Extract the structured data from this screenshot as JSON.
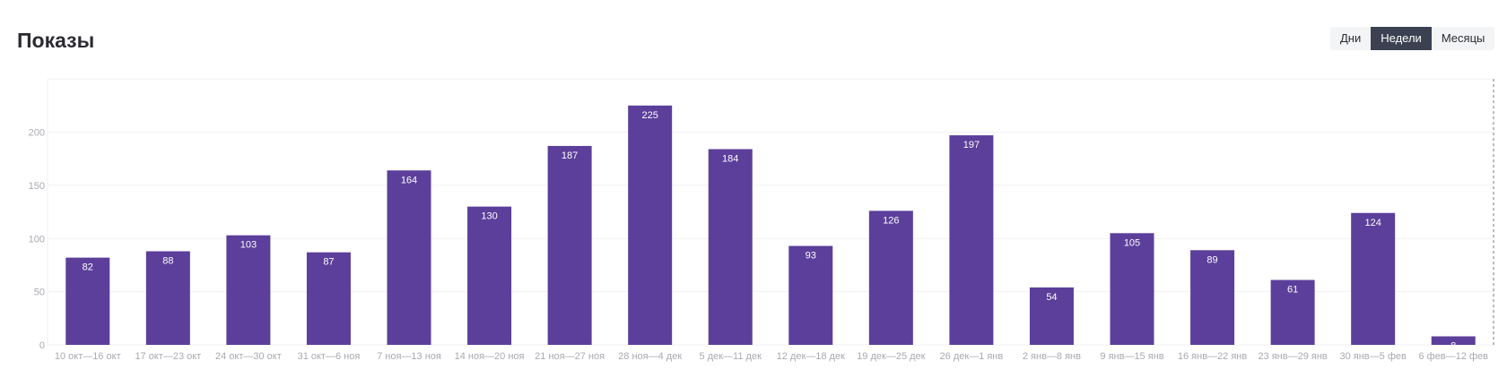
{
  "header": {
    "title": "Показы",
    "periods": [
      "Дни",
      "Недели",
      "Месяцы"
    ],
    "active_period": "Недели"
  },
  "colors": {
    "bar": "#5c3f9b",
    "grid": "#f1f1f4",
    "axis_text": "#a9a9b1",
    "active_button": "#3b4151"
  },
  "chart_data": {
    "type": "bar",
    "title": "Показы",
    "xlabel": "",
    "ylabel": "",
    "ylim": [
      0,
      250
    ],
    "yticks": [
      0,
      50,
      100,
      150,
      200
    ],
    "grid": true,
    "categories": [
      "10 окт—16 окт",
      "17 окт—23 окт",
      "24 окт—30 окт",
      "31 окт—6 ноя",
      "7 ноя—13 ноя",
      "14 ноя—20 ноя",
      "21 ноя—27 ноя",
      "28 ноя—4 дек",
      "5 дек—11 дек",
      "12 дек—18 дек",
      "19 дек—25 дек",
      "26 дек—1 янв",
      "2 янв—8 янв",
      "9 янв—15 янв",
      "16 янв—22 янв",
      "23 янв—29 янв",
      "30 янв—5 фев",
      "6 фев—12 фев"
    ],
    "values": [
      82,
      88,
      103,
      87,
      164,
      130,
      187,
      225,
      184,
      93,
      126,
      197,
      54,
      105,
      89,
      61,
      124,
      8
    ]
  }
}
